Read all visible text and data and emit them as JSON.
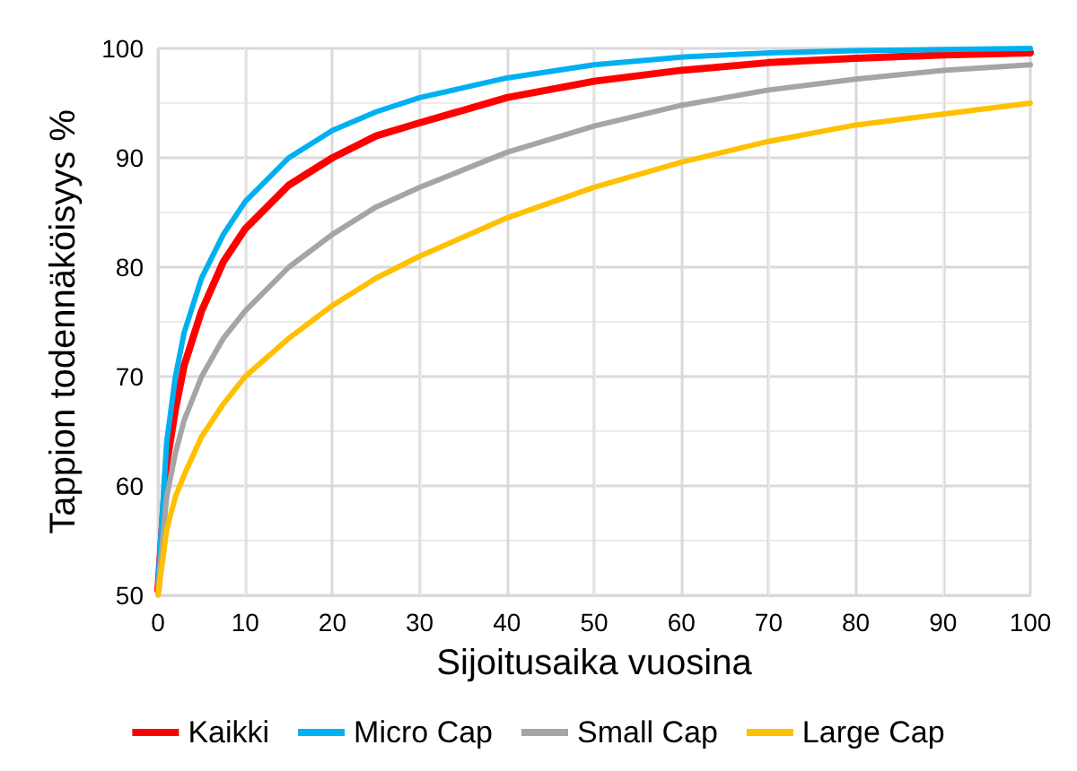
{
  "chart_data": {
    "type": "line",
    "xlabel": "Sijoitusaika vuosina",
    "ylabel": "Tappion todennäköisyys %",
    "x": [
      0,
      1,
      2,
      3,
      5,
      7.5,
      10,
      15,
      20,
      25,
      30,
      40,
      50,
      60,
      70,
      80,
      90,
      100
    ],
    "series": [
      {
        "name": "Kaikki",
        "color": "#ff0000",
        "values": [
          50.5,
          62,
          67,
          71,
          76,
          80.5,
          83.5,
          87.5,
          90,
          92,
          93.2,
          95.5,
          97,
          98,
          98.7,
          99.1,
          99.4,
          99.6
        ]
      },
      {
        "name": "Micro Cap",
        "color": "#00b0f0",
        "values": [
          51,
          64,
          70,
          74,
          79,
          83,
          86,
          90,
          92.5,
          94.2,
          95.5,
          97.3,
          98.5,
          99.2,
          99.6,
          99.8,
          99.9,
          100
        ]
      },
      {
        "name": "Small Cap",
        "color": "#a5a5a5",
        "values": [
          50.5,
          59,
          63,
          66,
          70,
          73.5,
          76,
          80,
          83,
          85.5,
          87.3,
          90.5,
          92.9,
          94.8,
          96.2,
          97.2,
          98,
          98.5
        ]
      },
      {
        "name": "Large Cap",
        "color": "#ffc000",
        "values": [
          50,
          56,
          59,
          61,
          64.5,
          67.5,
          70,
          73.5,
          76.5,
          79,
          81,
          84.5,
          87.3,
          89.6,
          91.5,
          93,
          94,
          95
        ]
      }
    ],
    "xlim": [
      0,
      100
    ],
    "xticks": [
      0,
      10,
      20,
      30,
      40,
      50,
      60,
      70,
      80,
      90,
      100
    ],
    "ylim": [
      50,
      100
    ],
    "yticks": [
      50,
      60,
      70,
      80,
      90,
      100
    ],
    "grid": true,
    "legend": "bottom",
    "marker": "none",
    "line_style": "solid"
  }
}
